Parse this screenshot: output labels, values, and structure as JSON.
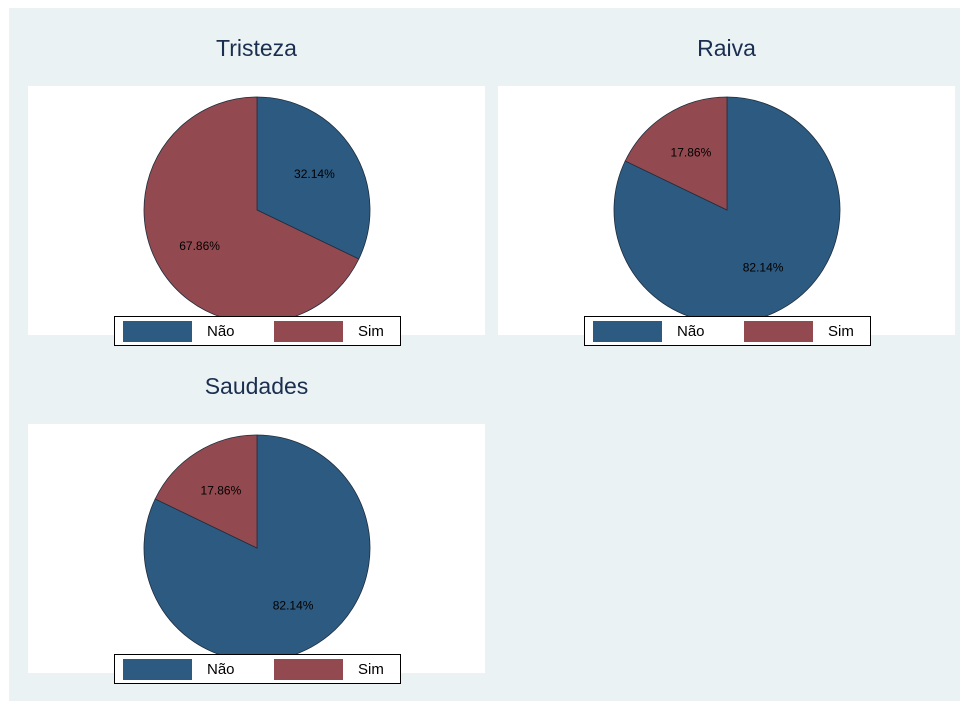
{
  "colors": {
    "nao": "#2d5a80",
    "sim": "#924a50",
    "background": "#eaf2f3"
  },
  "legend": {
    "nao": "Não",
    "sim": "Sim"
  },
  "chart_data": [
    {
      "type": "pie",
      "title": "Tristeza",
      "categories": [
        "Não",
        "Sim"
      ],
      "values": [
        32.14,
        67.86
      ],
      "labels": [
        "32.14%",
        "67.86%"
      ]
    },
    {
      "type": "pie",
      "title": "Raiva",
      "categories": [
        "Não",
        "Sim"
      ],
      "values": [
        82.14,
        17.86
      ],
      "labels": [
        "82.14%",
        "17.86%"
      ]
    },
    {
      "type": "pie",
      "title": "Saudades",
      "categories": [
        "Não",
        "Sim"
      ],
      "values": [
        82.14,
        17.86
      ],
      "labels": [
        "82.14%",
        "17.86%"
      ]
    }
  ]
}
